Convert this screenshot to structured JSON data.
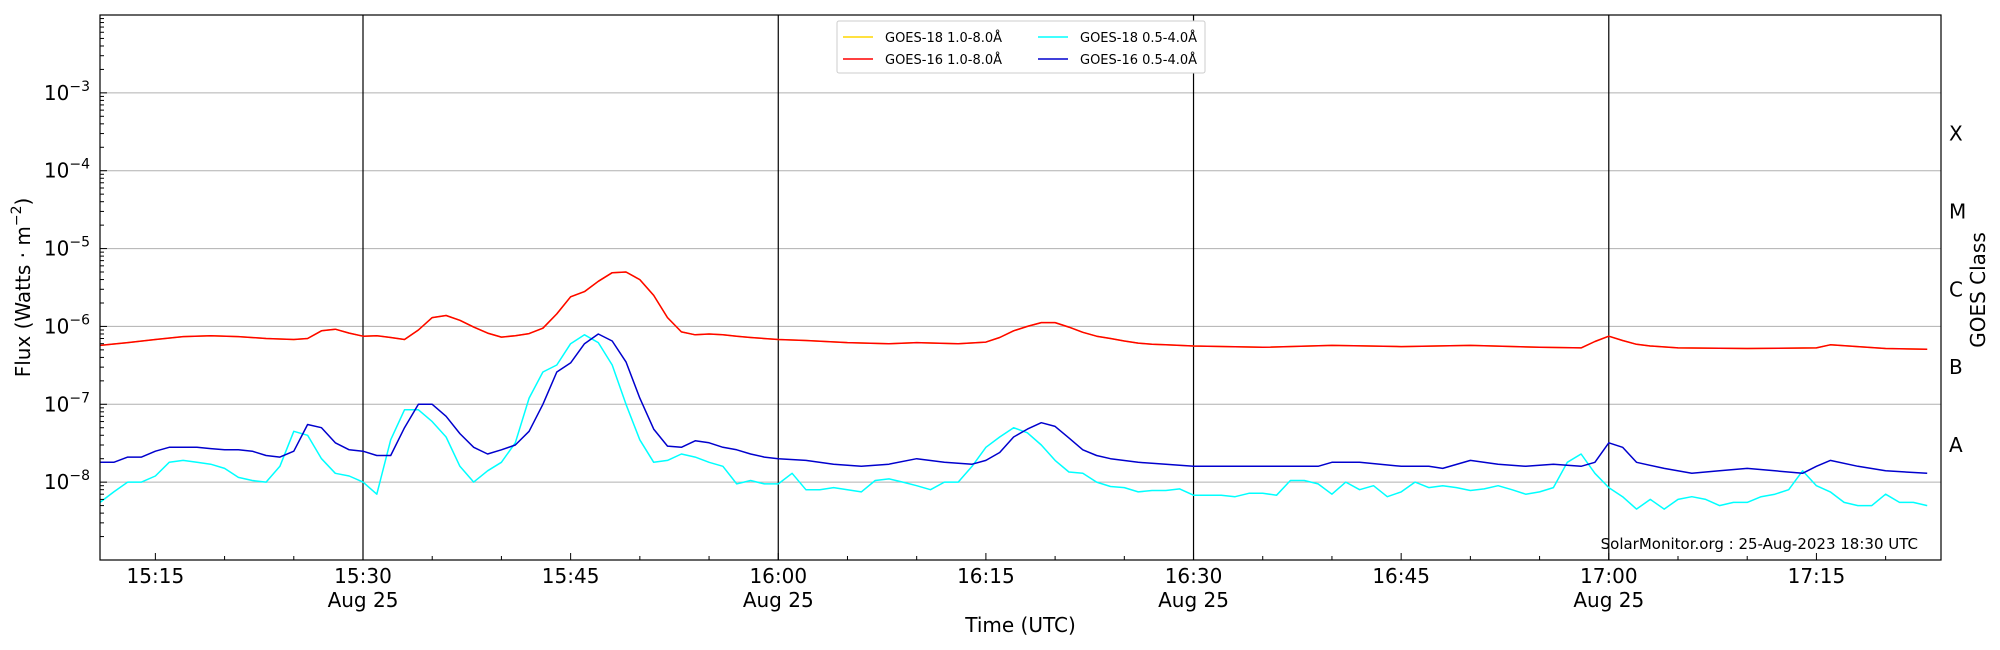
{
  "chart_data": {
    "type": "line",
    "xlabel": "Time (UTC)",
    "ylabel_base": "Flux (Watts · m",
    "ylabel_exp": "−2",
    "ylabel_close": ")",
    "right_axis_title": "GOES Class",
    "credit": "SolarMonitor.org : 25-Aug-2023 18:30 UTC",
    "log_y": true,
    "ylim": [
      1e-09,
      0.01
    ],
    "xlim": [
      "2023-08-25T15:11",
      "2023-08-25T17:24"
    ],
    "y_ticks": [
      {
        "value": -8,
        "base": "10",
        "exp": "−8"
      },
      {
        "value": -7,
        "base": "10",
        "exp": "−7"
      },
      {
        "value": -6,
        "base": "10",
        "exp": "−6"
      },
      {
        "value": -5,
        "base": "10",
        "exp": "−5"
      },
      {
        "value": -4,
        "base": "10",
        "exp": "−4"
      },
      {
        "value": -3,
        "base": "10",
        "exp": "−3"
      }
    ],
    "x_ticks": [
      {
        "time": "15:15",
        "label": "15:15",
        "date": ""
      },
      {
        "time": "15:30",
        "label": "15:30",
        "date": "Aug 25"
      },
      {
        "time": "15:45",
        "label": "15:45",
        "date": ""
      },
      {
        "time": "16:00",
        "label": "16:00",
        "date": "Aug 25"
      },
      {
        "time": "16:15",
        "label": "16:15",
        "date": ""
      },
      {
        "time": "16:30",
        "label": "16:30",
        "date": "Aug 25"
      },
      {
        "time": "16:45",
        "label": "16:45",
        "date": ""
      },
      {
        "time": "17:00",
        "label": "17:00",
        "date": "Aug 25"
      },
      {
        "time": "17:15",
        "label": "17:15",
        "date": ""
      }
    ],
    "vertical_lines": [
      "15:30",
      "16:00",
      "16:30",
      "17:00"
    ],
    "goes_classes": [
      {
        "label": "A",
        "flux": 3e-08
      },
      {
        "label": "B",
        "flux": 3e-07
      },
      {
        "label": "C",
        "flux": 3e-06
      },
      {
        "label": "M",
        "flux": 3e-05
      },
      {
        "label": "X",
        "flux": 0.0003
      }
    ],
    "grid": "horizontal at decades",
    "legend_position": "top-center",
    "legend": [
      {
        "name": "GOES-18 1.0-8.0Å",
        "color": "#ffd700",
        "col": 0,
        "row": 0
      },
      {
        "name": "GOES-18 0.5-4.0Å",
        "color": "#00ffff",
        "col": 1,
        "row": 0
      },
      {
        "name": "GOES-16 1.0-8.0Å",
        "color": "#ff0000",
        "col": 0,
        "row": 1
      },
      {
        "name": "GOES-16 0.5-4.0Å",
        "color": "#0000cd",
        "col": 1,
        "row": 1
      }
    ],
    "series": [
      {
        "name": "GOES-18 1.0-8.0Å",
        "color": "#ffd700",
        "x": [
          "15:11",
          "15:13",
          "15:15",
          "15:17",
          "15:19",
          "15:21",
          "15:23",
          "15:25",
          "15:26",
          "15:27",
          "15:28",
          "15:29",
          "15:30",
          "15:31",
          "15:32",
          "15:33",
          "15:34",
          "15:35",
          "15:36",
          "15:37",
          "15:38",
          "15:39",
          "15:40",
          "15:41",
          "15:42",
          "15:43",
          "15:44",
          "15:45",
          "15:46",
          "15:47",
          "15:48",
          "15:49",
          "15:50",
          "15:51",
          "15:52",
          "15:53",
          "15:54",
          "15:55",
          "15:56",
          "15:57",
          "15:58",
          "16:00",
          "16:02",
          "16:05",
          "16:08",
          "16:10",
          "16:13",
          "16:15",
          "16:16",
          "16:17",
          "16:18",
          "16:19",
          "16:20",
          "16:21",
          "16:22",
          "16:23",
          "16:24",
          "16:25",
          "16:26",
          "16:27",
          "16:28",
          "16:30",
          "16:35",
          "16:40",
          "16:45",
          "16:50",
          "16:55",
          "16:58",
          "16:59",
          "17:00",
          "17:01",
          "17:02",
          "17:03",
          "17:05",
          "17:10",
          "17:15",
          "17:16",
          "17:18",
          "17:20",
          "17:23"
        ],
        "y": [
          5.7e-07,
          6.2e-07,
          6.8e-07,
          7.4e-07,
          7.6e-07,
          7.4e-07,
          7e-07,
          6.8e-07,
          7e-07,
          8.8e-07,
          9.2e-07,
          8.2e-07,
          7.5e-07,
          7.6e-07,
          7.2e-07,
          6.8e-07,
          9e-07,
          1.3e-06,
          1.38e-06,
          1.2e-06,
          9.8e-07,
          8.2e-07,
          7.3e-07,
          7.6e-07,
          8.1e-07,
          9.5e-07,
          1.45e-06,
          2.4e-06,
          2.8e-06,
          3.8e-06,
          4.9e-06,
          5e-06,
          4e-06,
          2.5e-06,
          1.3e-06,
          8.5e-07,
          7.8e-07,
          8e-07,
          7.8e-07,
          7.5e-07,
          7.2e-07,
          6.8e-07,
          6.6e-07,
          6.2e-07,
          6e-07,
          6.2e-07,
          6e-07,
          6.3e-07,
          7.2e-07,
          8.8e-07,
          1e-06,
          1.12e-06,
          1.12e-06,
          9.8e-07,
          8.4e-07,
          7.5e-07,
          7e-07,
          6.5e-07,
          6.1e-07,
          5.9e-07,
          5.8e-07,
          5.6e-07,
          5.4e-07,
          5.7e-07,
          5.5e-07,
          5.7e-07,
          5.4e-07,
          5.3e-07,
          6.4e-07,
          7.5e-07,
          6.6e-07,
          5.9e-07,
          5.6e-07,
          5.3e-07,
          5.2e-07,
          5.3e-07,
          5.8e-07,
          5.5e-07,
          5.2e-07,
          5.1e-07
        ]
      },
      {
        "name": "GOES-16 1.0-8.0Å",
        "color": "#ff0000",
        "x": [
          "15:11",
          "15:13",
          "15:15",
          "15:17",
          "15:19",
          "15:21",
          "15:23",
          "15:25",
          "15:26",
          "15:27",
          "15:28",
          "15:29",
          "15:30",
          "15:31",
          "15:32",
          "15:33",
          "15:34",
          "15:35",
          "15:36",
          "15:37",
          "15:38",
          "15:39",
          "15:40",
          "15:41",
          "15:42",
          "15:43",
          "15:44",
          "15:45",
          "15:46",
          "15:47",
          "15:48",
          "15:49",
          "15:50",
          "15:51",
          "15:52",
          "15:53",
          "15:54",
          "15:55",
          "15:56",
          "15:57",
          "15:58",
          "16:00",
          "16:02",
          "16:05",
          "16:08",
          "16:10",
          "16:13",
          "16:15",
          "16:16",
          "16:17",
          "16:18",
          "16:19",
          "16:20",
          "16:21",
          "16:22",
          "16:23",
          "16:24",
          "16:25",
          "16:26",
          "16:27",
          "16:28",
          "16:30",
          "16:35",
          "16:40",
          "16:45",
          "16:50",
          "16:55",
          "16:58",
          "16:59",
          "17:00",
          "17:01",
          "17:02",
          "17:03",
          "17:05",
          "17:10",
          "17:15",
          "17:16",
          "17:18",
          "17:20",
          "17:23"
        ],
        "y": [
          5.7e-07,
          6.2e-07,
          6.8e-07,
          7.4e-07,
          7.6e-07,
          7.4e-07,
          7e-07,
          6.8e-07,
          7e-07,
          8.8e-07,
          9.2e-07,
          8.2e-07,
          7.5e-07,
          7.6e-07,
          7.2e-07,
          6.8e-07,
          9e-07,
          1.3e-06,
          1.38e-06,
          1.2e-06,
          9.8e-07,
          8.2e-07,
          7.3e-07,
          7.6e-07,
          8.1e-07,
          9.5e-07,
          1.45e-06,
          2.4e-06,
          2.8e-06,
          3.8e-06,
          4.9e-06,
          5e-06,
          4e-06,
          2.5e-06,
          1.3e-06,
          8.5e-07,
          7.8e-07,
          8e-07,
          7.8e-07,
          7.5e-07,
          7.2e-07,
          6.8e-07,
          6.6e-07,
          6.2e-07,
          6e-07,
          6.2e-07,
          6e-07,
          6.3e-07,
          7.2e-07,
          8.8e-07,
          1e-06,
          1.12e-06,
          1.12e-06,
          9.8e-07,
          8.4e-07,
          7.5e-07,
          7e-07,
          6.5e-07,
          6.1e-07,
          5.9e-07,
          5.8e-07,
          5.6e-07,
          5.4e-07,
          5.7e-07,
          5.5e-07,
          5.7e-07,
          5.4e-07,
          5.3e-07,
          6.4e-07,
          7.5e-07,
          6.6e-07,
          5.9e-07,
          5.6e-07,
          5.3e-07,
          5.2e-07,
          5.3e-07,
          5.8e-07,
          5.5e-07,
          5.2e-07,
          5.1e-07
        ]
      },
      {
        "name": "GOES-18 0.5-4.0Å",
        "color": "#00ffff",
        "x": [
          "15:11",
          "15:12",
          "15:13",
          "15:14",
          "15:15",
          "15:16",
          "15:17",
          "15:18",
          "15:19",
          "15:20",
          "15:21",
          "15:22",
          "15:23",
          "15:24",
          "15:25",
          "15:26",
          "15:27",
          "15:28",
          "15:29",
          "15:30",
          "15:31",
          "15:32",
          "15:33",
          "15:34",
          "15:35",
          "15:36",
          "15:37",
          "15:38",
          "15:39",
          "15:40",
          "15:41",
          "15:42",
          "15:43",
          "15:44",
          "15:45",
          "15:46",
          "15:47",
          "15:48",
          "15:49",
          "15:50",
          "15:51",
          "15:52",
          "15:53",
          "15:54",
          "15:55",
          "15:56",
          "15:57",
          "15:58",
          "15:59",
          "16:00",
          "16:01",
          "16:02",
          "16:03",
          "16:04",
          "16:05",
          "16:06",
          "16:07",
          "16:08",
          "16:09",
          "16:10",
          "16:11",
          "16:12",
          "16:13",
          "16:14",
          "16:15",
          "16:16",
          "16:17",
          "16:18",
          "16:19",
          "16:20",
          "16:21",
          "16:22",
          "16:23",
          "16:24",
          "16:25",
          "16:26",
          "16:27",
          "16:28",
          "16:29",
          "16:30",
          "16:31",
          "16:32",
          "16:33",
          "16:34",
          "16:35",
          "16:36",
          "16:37",
          "16:38",
          "16:39",
          "16:40",
          "16:41",
          "16:42",
          "16:43",
          "16:44",
          "16:45",
          "16:46",
          "16:47",
          "16:48",
          "16:49",
          "16:50",
          "16:51",
          "16:52",
          "16:53",
          "16:54",
          "16:55",
          "16:56",
          "16:57",
          "16:58",
          "16:59",
          "17:00",
          "17:01",
          "17:02",
          "17:03",
          "17:04",
          "17:05",
          "17:06",
          "17:07",
          "17:08",
          "17:09",
          "17:10",
          "17:11",
          "17:12",
          "17:13",
          "17:14",
          "17:15",
          "17:16",
          "17:17",
          "17:18",
          "17:19",
          "17:20",
          "17:21",
          "17:22",
          "17:23"
        ],
        "y": [
          5.5e-09,
          7.5e-09,
          1e-08,
          1e-08,
          1.2e-08,
          1.8e-08,
          1.9e-08,
          1.8e-08,
          1.7e-08,
          1.5e-08,
          1.15e-08,
          1.05e-08,
          1e-08,
          1.6e-08,
          4.5e-08,
          4e-08,
          2e-08,
          1.3e-08,
          1.2e-08,
          1e-08,
          7e-09,
          3.5e-08,
          8.5e-08,
          8.5e-08,
          6e-08,
          3.8e-08,
          1.6e-08,
          1e-08,
          1.4e-08,
          1.8e-08,
          3.2e-08,
          1.2e-07,
          2.6e-07,
          3.2e-07,
          6e-07,
          7.8e-07,
          6.2e-07,
          3.2e-07,
          1e-07,
          3.5e-08,
          1.8e-08,
          1.9e-08,
          2.3e-08,
          2.1e-08,
          1.8e-08,
          1.6e-08,
          9.5e-09,
          1.05e-08,
          9.5e-09,
          9.5e-09,
          1.3e-08,
          8e-09,
          8e-09,
          8.5e-09,
          8e-09,
          7.5e-09,
          1.05e-08,
          1.1e-08,
          1e-08,
          9e-09,
          8e-09,
          1e-08,
          1e-08,
          1.6e-08,
          2.8e-08,
          3.8e-08,
          5e-08,
          4.3e-08,
          3e-08,
          1.9e-08,
          1.35e-08,
          1.3e-08,
          1e-08,
          8.8e-09,
          8.5e-09,
          7.5e-09,
          7.8e-09,
          7.8e-09,
          8.2e-09,
          6.8e-09,
          6.8e-09,
          6.8e-09,
          6.5e-09,
          7.2e-09,
          7.2e-09,
          6.8e-09,
          1.05e-08,
          1.05e-08,
          9.5e-09,
          7e-09,
          1e-08,
          8e-09,
          9e-09,
          6.5e-09,
          7.5e-09,
          1e-08,
          8.5e-09,
          9e-09,
          8.5e-09,
          7.8e-09,
          8.2e-09,
          9e-09,
          8e-09,
          7e-09,
          7.5e-09,
          8.5e-09,
          1.8e-08,
          2.3e-08,
          1.3e-08,
          8.5e-09,
          6.5e-09,
          4.5e-09,
          6e-09,
          4.5e-09,
          6e-09,
          6.5e-09,
          6e-09,
          5e-09,
          5.5e-09,
          5.5e-09,
          6.5e-09,
          7e-09,
          8e-09,
          1.4e-08,
          9e-09,
          7.5e-09,
          5.5e-09,
          5e-09,
          5e-09,
          7e-09,
          5.5e-09,
          5.5e-09,
          5e-09
        ]
      },
      {
        "name": "GOES-16 0.5-4.0Å",
        "color": "#0000cd",
        "x": [
          "15:11",
          "15:12",
          "15:13",
          "15:14",
          "15:15",
          "15:16",
          "15:17",
          "15:18",
          "15:19",
          "15:20",
          "15:21",
          "15:22",
          "15:23",
          "15:24",
          "15:25",
          "15:26",
          "15:27",
          "15:28",
          "15:29",
          "15:30",
          "15:31",
          "15:32",
          "15:33",
          "15:34",
          "15:35",
          "15:36",
          "15:37",
          "15:38",
          "15:39",
          "15:40",
          "15:41",
          "15:42",
          "15:43",
          "15:44",
          "15:45",
          "15:46",
          "15:47",
          "15:48",
          "15:49",
          "15:50",
          "15:51",
          "15:52",
          "15:53",
          "15:54",
          "15:55",
          "15:56",
          "15:57",
          "15:58",
          "15:59",
          "16:00",
          "16:02",
          "16:04",
          "16:06",
          "16:08",
          "16:10",
          "16:12",
          "16:14",
          "16:15",
          "16:16",
          "16:17",
          "16:18",
          "16:19",
          "16:20",
          "16:21",
          "16:22",
          "16:23",
          "16:24",
          "16:26",
          "16:28",
          "16:30",
          "16:33",
          "16:36",
          "16:39",
          "16:40",
          "16:42",
          "16:45",
          "16:47",
          "16:48",
          "16:50",
          "16:52",
          "16:54",
          "16:56",
          "16:58",
          "16:59",
          "17:00",
          "17:01",
          "17:02",
          "17:04",
          "17:06",
          "17:08",
          "17:10",
          "17:12",
          "17:14",
          "17:15",
          "17:16",
          "17:18",
          "17:20",
          "17:23"
        ],
        "y": [
          1.8e-08,
          1.8e-08,
          2.1e-08,
          2.1e-08,
          2.5e-08,
          2.8e-08,
          2.8e-08,
          2.8e-08,
          2.7e-08,
          2.6e-08,
          2.6e-08,
          2.5e-08,
          2.2e-08,
          2.1e-08,
          2.5e-08,
          5.5e-08,
          5e-08,
          3.2e-08,
          2.6e-08,
          2.5e-08,
          2.2e-08,
          2.2e-08,
          5e-08,
          1e-07,
          1e-07,
          7e-08,
          4.2e-08,
          2.8e-08,
          2.3e-08,
          2.6e-08,
          3e-08,
          4.5e-08,
          1e-07,
          2.6e-07,
          3.4e-07,
          6e-07,
          8e-07,
          6.5e-07,
          3.5e-07,
          1.2e-07,
          4.8e-08,
          2.9e-08,
          2.8e-08,
          3.4e-08,
          3.2e-08,
          2.8e-08,
          2.6e-08,
          2.3e-08,
          2.1e-08,
          2e-08,
          1.9e-08,
          1.7e-08,
          1.6e-08,
          1.7e-08,
          2e-08,
          1.8e-08,
          1.7e-08,
          1.9e-08,
          2.4e-08,
          3.8e-08,
          4.8e-08,
          5.8e-08,
          5.2e-08,
          3.7e-08,
          2.6e-08,
          2.2e-08,
          2e-08,
          1.8e-08,
          1.7e-08,
          1.6e-08,
          1.6e-08,
          1.6e-08,
          1.6e-08,
          1.8e-08,
          1.8e-08,
          1.6e-08,
          1.6e-08,
          1.5e-08,
          1.9e-08,
          1.7e-08,
          1.6e-08,
          1.7e-08,
          1.6e-08,
          1.8e-08,
          3.2e-08,
          2.8e-08,
          1.8e-08,
          1.5e-08,
          1.3e-08,
          1.4e-08,
          1.5e-08,
          1.4e-08,
          1.3e-08,
          1.6e-08,
          1.9e-08,
          1.6e-08,
          1.4e-08,
          1.3e-08
        ]
      }
    ]
  }
}
